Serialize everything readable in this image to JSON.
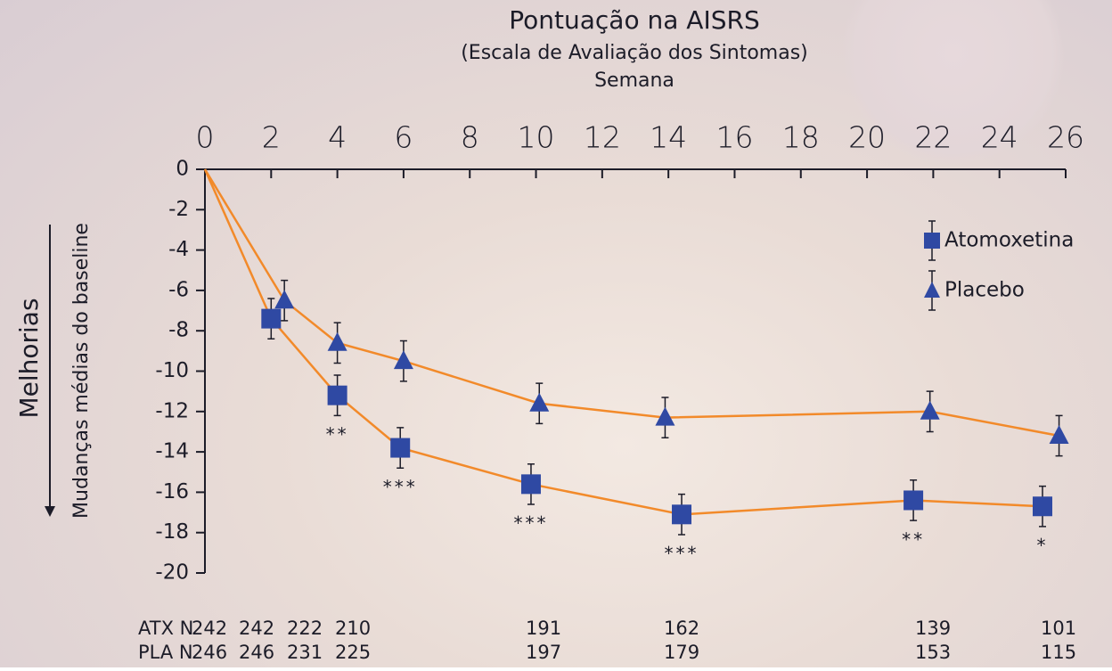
{
  "chart_data": {
    "type": "line",
    "title": "Pontuação na AISRS",
    "subtitle": "(Escala de Avaliação dos Sintomas)",
    "x_label": "Semana",
    "y_label": "Mudanças médias do baseline",
    "y_note": "Melhorias",
    "xlim": [
      0,
      26
    ],
    "xticks": [
      0,
      2,
      4,
      6,
      8,
      10,
      12,
      14,
      16,
      18,
      20,
      22,
      24,
      26
    ],
    "ylim": [
      -20,
      0
    ],
    "yticks": [
      0,
      -2,
      -4,
      -6,
      -8,
      -10,
      -12,
      -14,
      -16,
      -18,
      -20
    ],
    "legend": "upper right",
    "series": [
      {
        "name": "Atomoxetina",
        "color": "#2f49a3",
        "line_color": "#f28a2a",
        "marker": "square",
        "x": [
          0,
          2,
          4,
          5.9,
          9.85,
          14.4,
          21.4,
          25.3
        ],
        "values": [
          0,
          -7.4,
          -11.2,
          -13.8,
          -15.6,
          -17.1,
          -16.4,
          -16.7
        ],
        "errors": [
          null,
          1.0,
          1.0,
          1.0,
          1.0,
          1.0,
          1.0,
          1.0
        ]
      },
      {
        "name": "Placebo",
        "color": "#2f49a3",
        "line_color": "#f28a2a",
        "marker": "triangle",
        "x": [
          0,
          2.4,
          4.0,
          6.0,
          10.1,
          13.9,
          21.9,
          25.8
        ],
        "values": [
          0,
          -6.5,
          -8.6,
          -9.5,
          -11.6,
          -12.3,
          -12.0,
          -13.2
        ],
        "errors": [
          null,
          1.0,
          1.0,
          1.0,
          1.0,
          1.0,
          1.0,
          1.0
        ]
      }
    ],
    "annotations": [
      {
        "x": 4,
        "y": -13.2,
        "text": "**"
      },
      {
        "x": 5.9,
        "y": -15.8,
        "text": "***"
      },
      {
        "x": 9.85,
        "y": -17.6,
        "text": "***"
      },
      {
        "x": 14.4,
        "y": -19.1,
        "text": "***"
      },
      {
        "x": 21.4,
        "y": -18.4,
        "text": "**"
      },
      {
        "x": 25.3,
        "y": -18.7,
        "text": "*"
      }
    ],
    "n_table": [
      {
        "label": "ATX N",
        "values": [
          242,
          242,
          222,
          210,
          191,
          162,
          139,
          101
        ]
      },
      {
        "label": "PLA N",
        "values": [
          246,
          246,
          231,
          225,
          197,
          179,
          153,
          115
        ]
      }
    ]
  }
}
